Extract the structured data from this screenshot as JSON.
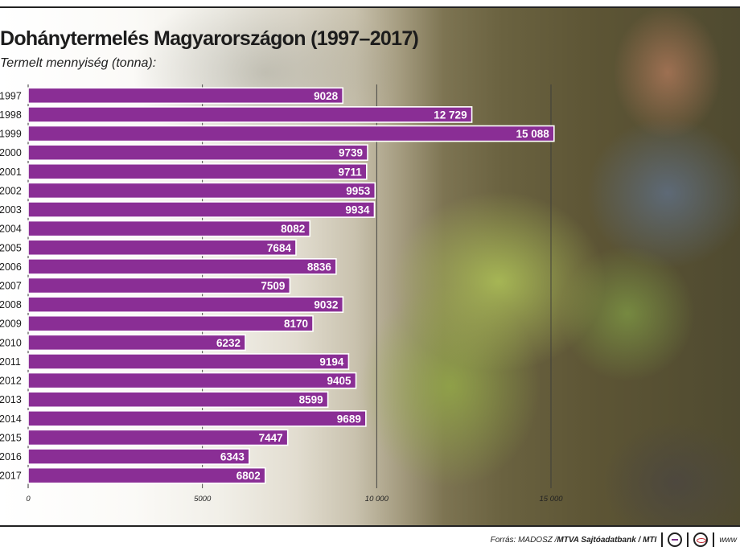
{
  "header": {
    "title": "Dohánytermelés Magyarországon (1997–2017)",
    "subtitle": "Termelt mennyiség (tonna):"
  },
  "chart_data": {
    "type": "bar",
    "orientation": "horizontal",
    "categories": [
      "1997",
      "1998",
      "1999",
      "2000",
      "2001",
      "2002",
      "2003",
      "2004",
      "2005",
      "2006",
      "2007",
      "2008",
      "2009",
      "2010",
      "2011",
      "2012",
      "2013",
      "2014",
      "2015",
      "2016",
      "2017"
    ],
    "values": [
      9028,
      12729,
      15088,
      9739,
      9711,
      9953,
      9934,
      8082,
      7684,
      8836,
      7509,
      9032,
      8170,
      6232,
      9194,
      9405,
      8599,
      9689,
      7447,
      6343,
      6802
    ],
    "value_labels": [
      "9028",
      "12 729",
      "15 088",
      "9739",
      "9711",
      "9953",
      "9934",
      "8082",
      "7684",
      "8836",
      "7509",
      "9032",
      "8170",
      "6232",
      "9194",
      "9405",
      "8599",
      "9689",
      "7447",
      "6343",
      "6802"
    ],
    "xlim": [
      0,
      15000
    ],
    "xticks": [
      0,
      5000,
      10000,
      15000
    ],
    "xtick_labels": [
      "0",
      "5000",
      "10 000",
      "15 000"
    ],
    "grid": true,
    "bar_color": "#8a2e95"
  },
  "footer": {
    "source_prefix": "Forrás: MADOSZ / ",
    "source_bold": "MTVA Sajtóadatbank / MTI",
    "url": "www"
  },
  "icons": [
    "mtva-logo-icon",
    "m1-logo-icon"
  ]
}
